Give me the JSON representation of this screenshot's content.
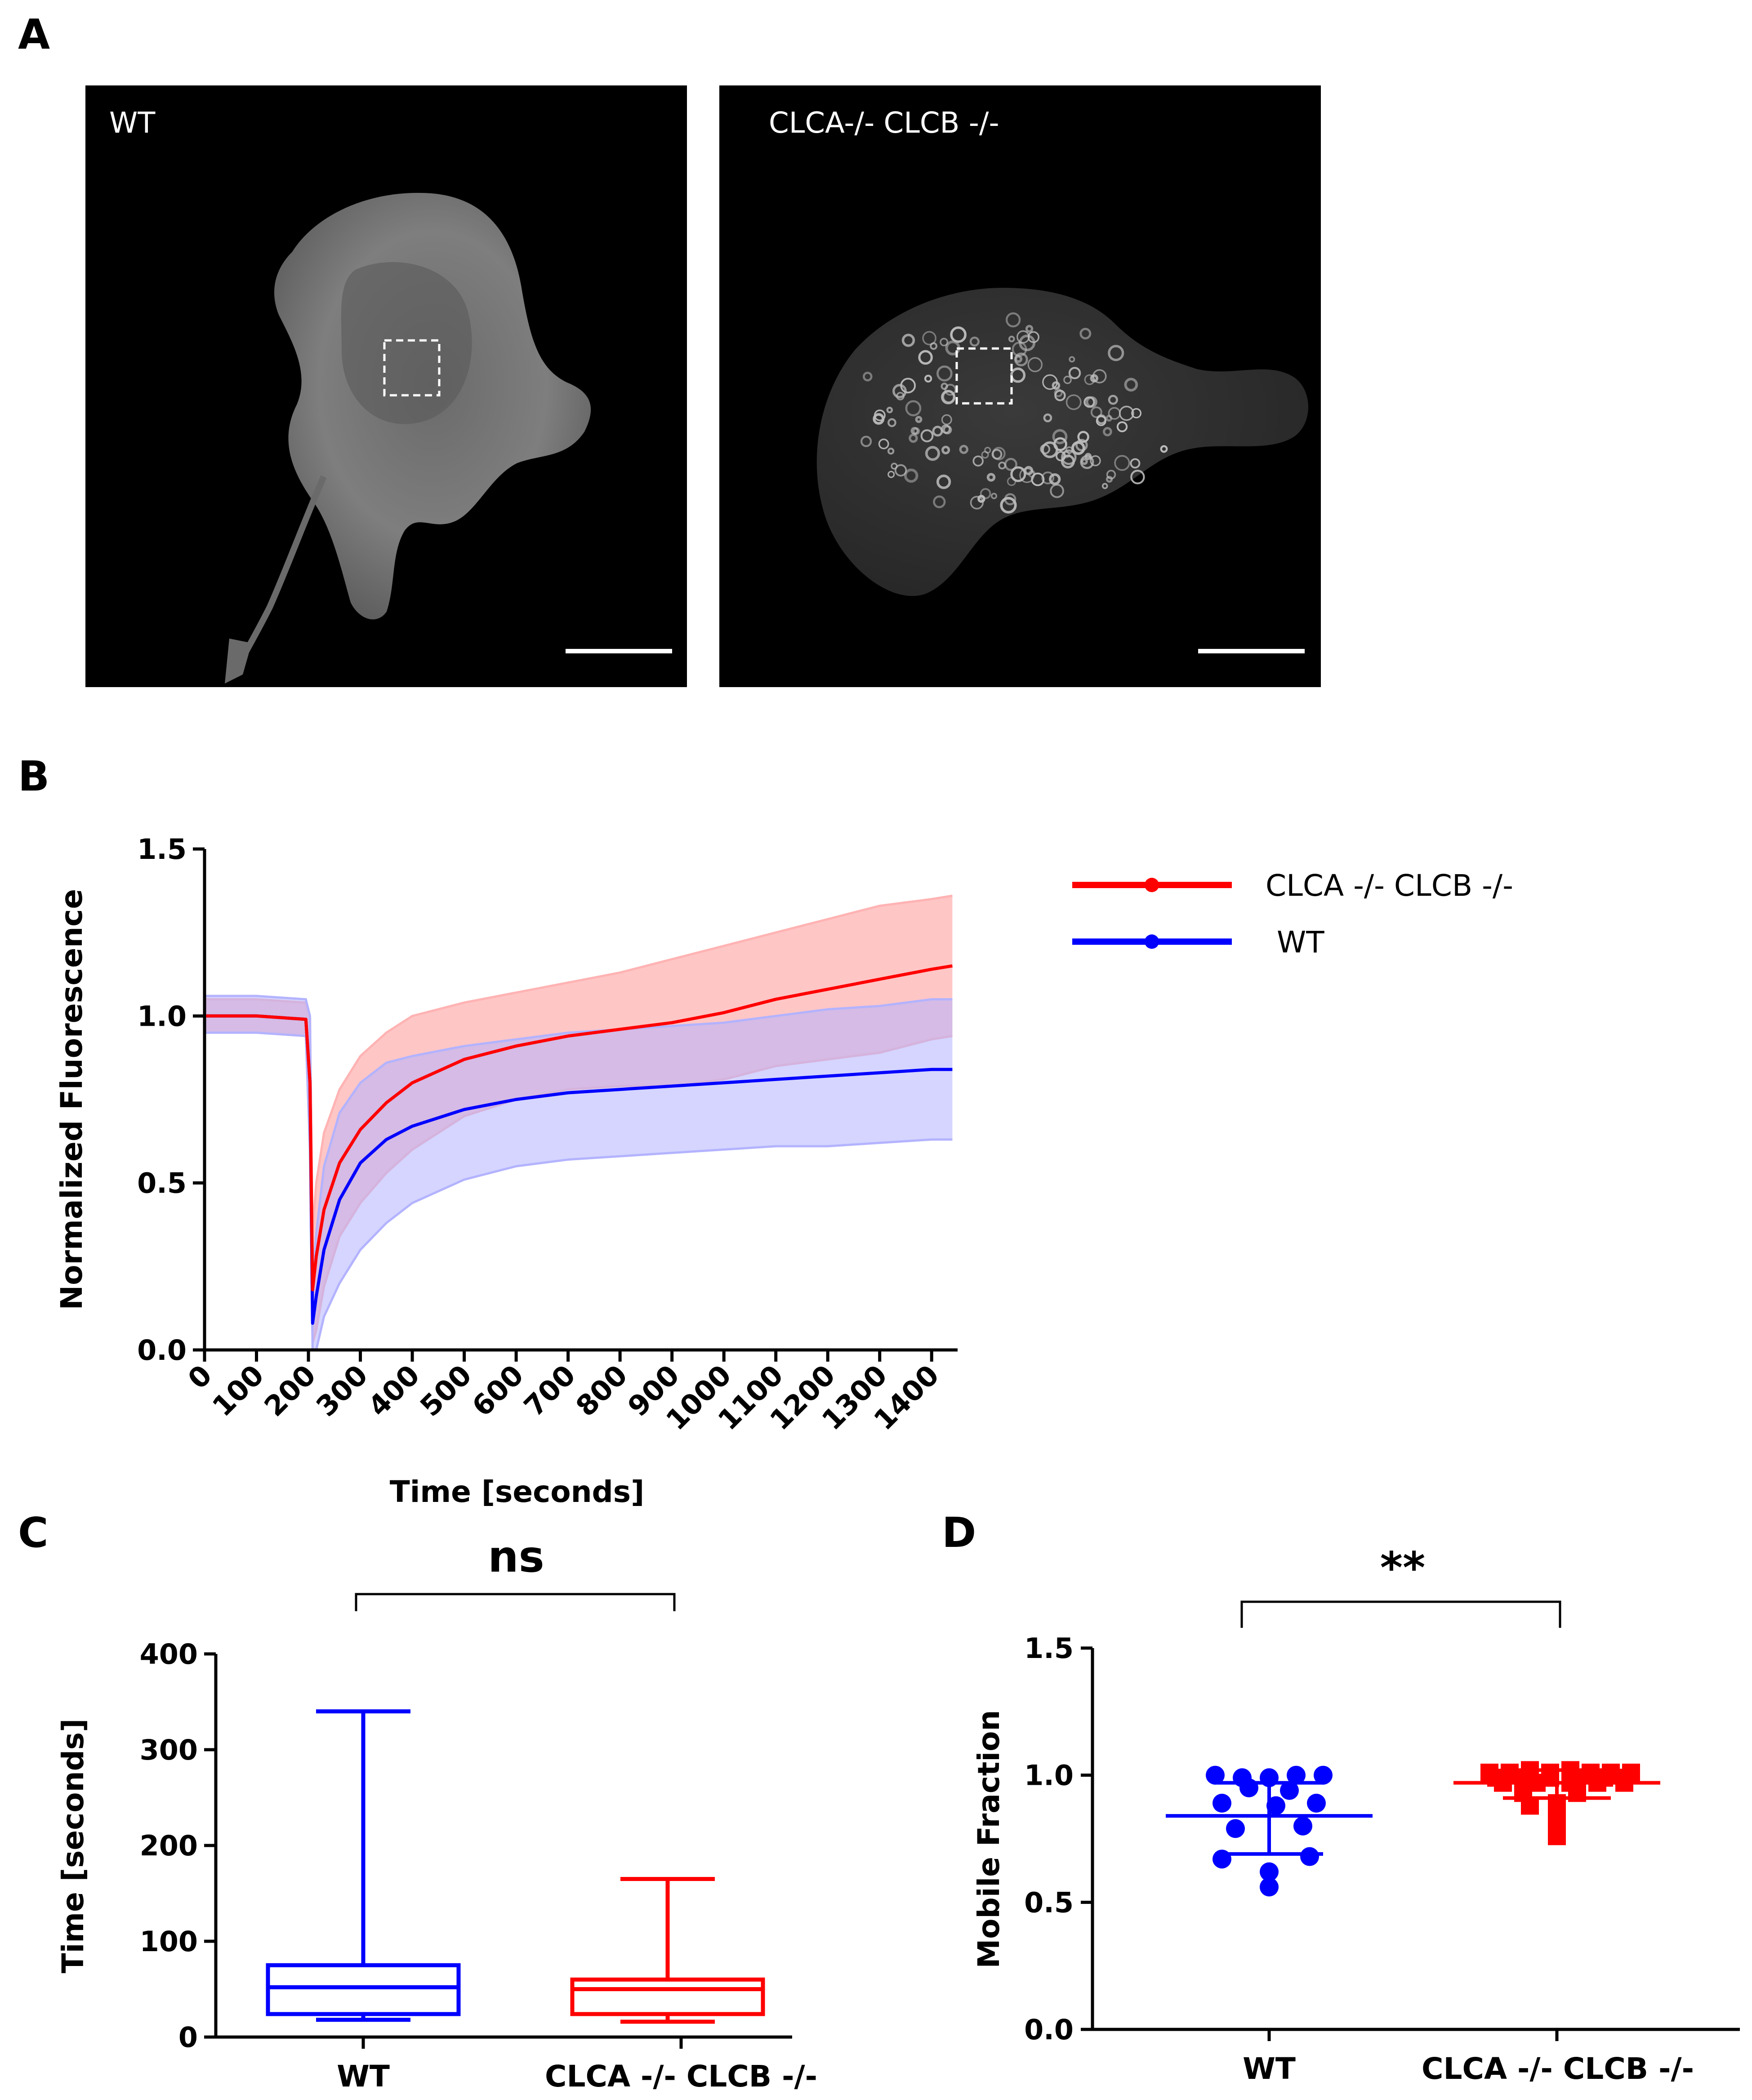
{
  "panels": {
    "A": {
      "letter": "A"
    },
    "B": {
      "letter": "B"
    },
    "C": {
      "letter": "C"
    },
    "D": {
      "letter": "D"
    }
  },
  "micrographs": [
    {
      "label": "WT",
      "style": "uniform"
    },
    {
      "label": "CLCA-/- CLCB -/-",
      "style": "punctate"
    }
  ],
  "colors": {
    "red": "#ff0000",
    "blue": "#0000ff",
    "red_band": "#ffb3b3",
    "blue_band": "#b3b3ff"
  },
  "chart_data": [
    {
      "panel": "B",
      "type": "line",
      "xlabel": "Time [seconds]",
      "ylabel": "Normalized Fluorescence",
      "xlim": [
        0,
        1450
      ],
      "ylim": [
        0,
        1.5
      ],
      "xticks": [
        0,
        100,
        200,
        300,
        400,
        500,
        600,
        700,
        800,
        900,
        1000,
        1100,
        1200,
        1300,
        1400
      ],
      "yticks": [
        "0.0",
        "0.5",
        "1.0",
        "1.5"
      ],
      "legend": [
        {
          "name": "CLCA -/- CLCB -/-",
          "color": "#ff0000"
        },
        {
          "name": "WT",
          "color": "#0000ff"
        }
      ],
      "series": [
        {
          "name": "CLCA -/- CLCB -/-",
          "color": "#ff0000",
          "x": [
            0,
            100,
            195,
            203,
            208,
            215,
            230,
            260,
            300,
            350,
            400,
            500,
            600,
            700,
            800,
            900,
            1000,
            1100,
            1200,
            1300,
            1400,
            1440
          ],
          "y": [
            1.0,
            1.0,
            0.99,
            0.8,
            0.18,
            0.28,
            0.42,
            0.56,
            0.66,
            0.74,
            0.8,
            0.87,
            0.91,
            0.94,
            0.96,
            0.98,
            1.01,
            1.05,
            1.08,
            1.11,
            1.14,
            1.15
          ],
          "upper": [
            1.05,
            1.05,
            1.04,
            1.0,
            0.35,
            0.5,
            0.65,
            0.78,
            0.88,
            0.95,
            1.0,
            1.04,
            1.07,
            1.1,
            1.13,
            1.17,
            1.21,
            1.25,
            1.29,
            1.33,
            1.35,
            1.36
          ],
          "lower": [
            0.95,
            0.95,
            0.94,
            0.6,
            0.02,
            0.06,
            0.19,
            0.34,
            0.44,
            0.53,
            0.6,
            0.7,
            0.75,
            0.78,
            0.79,
            0.79,
            0.81,
            0.85,
            0.87,
            0.89,
            0.93,
            0.94
          ]
        },
        {
          "name": "WT",
          "color": "#0000ff",
          "x": [
            0,
            100,
            195,
            203,
            208,
            215,
            230,
            260,
            300,
            350,
            400,
            500,
            600,
            700,
            800,
            900,
            1000,
            1100,
            1200,
            1300,
            1400,
            1440
          ],
          "y": [
            1.0,
            1.0,
            0.99,
            0.8,
            0.08,
            0.16,
            0.3,
            0.45,
            0.56,
            0.63,
            0.67,
            0.72,
            0.75,
            0.77,
            0.78,
            0.79,
            0.8,
            0.81,
            0.82,
            0.83,
            0.84,
            0.84
          ],
          "upper": [
            1.06,
            1.06,
            1.05,
            1.0,
            0.2,
            0.35,
            0.55,
            0.71,
            0.8,
            0.86,
            0.88,
            0.91,
            0.93,
            0.95,
            0.96,
            0.97,
            0.98,
            1.0,
            1.02,
            1.03,
            1.05,
            1.05
          ],
          "lower": [
            0.95,
            0.95,
            0.94,
            0.6,
            0.0,
            0.0,
            0.1,
            0.2,
            0.3,
            0.38,
            0.44,
            0.51,
            0.55,
            0.57,
            0.58,
            0.59,
            0.6,
            0.61,
            0.61,
            0.62,
            0.63,
            0.63
          ]
        }
      ]
    },
    {
      "panel": "C",
      "type": "box",
      "ylabel": "Time [seconds]",
      "ylim": [
        0,
        400
      ],
      "yticks": [
        "0",
        "100",
        "200",
        "300",
        "400"
      ],
      "categories": [
        "WT",
        "CLCA -/- CLCB -/-"
      ],
      "significance": "ns",
      "boxes": [
        {
          "name": "WT",
          "color": "#0000ff",
          "min": 18,
          "q1": 24,
          "median": 52,
          "q3": 75,
          "max": 340
        },
        {
          "name": "CLCA -/- CLCB -/-",
          "color": "#ff0000",
          "min": 16,
          "q1": 24,
          "median": 50,
          "q3": 60,
          "max": 165
        }
      ]
    },
    {
      "panel": "D",
      "type": "scatter",
      "ylabel": "Mobile Fraction",
      "ylim": [
        0,
        1.5
      ],
      "yticks": [
        "0.0",
        "0.5",
        "1.0",
        "1.5"
      ],
      "categories": [
        "WT",
        "CLCA -/- CLCB -/-"
      ],
      "significance": "**",
      "groups": [
        {
          "name": "WT",
          "color": "#0000ff",
          "marker": "circle",
          "mean": 0.84,
          "sd_upper": 0.97,
          "sd_lower": 0.69,
          "points": [
            {
              "offset": -0.8,
              "y": 1.0
            },
            {
              "offset": -0.4,
              "y": 0.99
            },
            {
              "offset": 0.0,
              "y": 0.99
            },
            {
              "offset": 0.4,
              "y": 1.0
            },
            {
              "offset": 0.8,
              "y": 1.0
            },
            {
              "offset": -0.3,
              "y": 0.95
            },
            {
              "offset": 0.3,
              "y": 0.94
            },
            {
              "offset": -0.7,
              "y": 0.89
            },
            {
              "offset": 0.1,
              "y": 0.88
            },
            {
              "offset": 0.7,
              "y": 0.89
            },
            {
              "offset": -0.5,
              "y": 0.79
            },
            {
              "offset": 0.5,
              "y": 0.8
            },
            {
              "offset": -0.7,
              "y": 0.67
            },
            {
              "offset": 0.6,
              "y": 0.68
            },
            {
              "offset": 0.0,
              "y": 0.62
            },
            {
              "offset": 0.0,
              "y": 0.56
            }
          ]
        },
        {
          "name": "CLCA -/- CLCB -/-",
          "color": "#ff0000",
          "marker": "square",
          "mean": 0.97,
          "sd_upper": 1.02,
          "sd_lower": 0.91,
          "points": [
            {
              "offset": -1.0,
              "y": 1.01
            },
            {
              "offset": -0.7,
              "y": 1.01
            },
            {
              "offset": -0.4,
              "y": 1.02
            },
            {
              "offset": -0.1,
              "y": 1.01
            },
            {
              "offset": 0.2,
              "y": 1.02
            },
            {
              "offset": 0.5,
              "y": 1.01
            },
            {
              "offset": 0.8,
              "y": 1.01
            },
            {
              "offset": 1.1,
              "y": 1.01
            },
            {
              "offset": -0.9,
              "y": 0.99
            },
            {
              "offset": -0.5,
              "y": 0.99
            },
            {
              "offset": -0.1,
              "y": 0.99
            },
            {
              "offset": 0.3,
              "y": 0.99
            },
            {
              "offset": 0.7,
              "y": 0.99
            },
            {
              "offset": 1.0,
              "y": 0.99
            },
            {
              "offset": -0.8,
              "y": 0.97
            },
            {
              "offset": -0.3,
              "y": 0.97
            },
            {
              "offset": 0.2,
              "y": 0.97
            },
            {
              "offset": 0.6,
              "y": 0.97
            },
            {
              "offset": 1.0,
              "y": 0.97
            },
            {
              "offset": -0.5,
              "y": 0.93
            },
            {
              "offset": 0.3,
              "y": 0.93
            },
            {
              "offset": -0.4,
              "y": 0.88
            },
            {
              "offset": 0.0,
              "y": 0.89
            },
            {
              "offset": 0.0,
              "y": 0.82
            },
            {
              "offset": 0.0,
              "y": 0.76
            }
          ]
        }
      ]
    }
  ]
}
